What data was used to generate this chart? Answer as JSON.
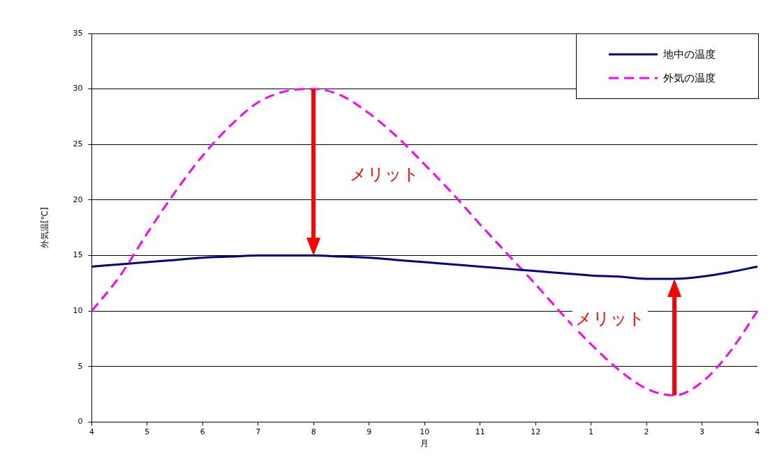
{
  "chart_data": {
    "type": "line",
    "xlabel": "月",
    "ylabel": "外気温[℃]",
    "categories": [
      "4",
      null,
      "5",
      null,
      "6",
      null,
      "7",
      null,
      "8",
      null,
      "9",
      null,
      "10",
      null,
      "11",
      null,
      "12",
      null,
      "1",
      null,
      "2",
      null,
      "3",
      null,
      "4"
    ],
    "ylim": [
      0,
      35
    ],
    "yticks": [
      0,
      5,
      10,
      15,
      20,
      25,
      30,
      35
    ],
    "grid": "y",
    "legend": "top right",
    "marker": "none",
    "series": [
      {
        "name": "地中の温度",
        "color": "#000080",
        "line_style": "solid",
        "values": [
          14,
          14.2,
          14.4,
          14.6,
          14.8,
          14.9,
          15.0,
          15.0,
          15.0,
          14.9,
          14.8,
          14.6,
          14.4,
          14.2,
          14.0,
          13.8,
          13.6,
          13.4,
          13.2,
          13.1,
          12.9,
          12.9,
          13.1,
          13.5,
          14
        ]
      },
      {
        "name": "外気の温度",
        "color": "#ff00ff",
        "line_style": "dashed",
        "values": [
          10,
          13.1,
          17,
          20.7,
          24,
          26.7,
          28.8,
          29.8,
          30,
          29.4,
          27.8,
          25.7,
          23.2,
          20.6,
          17.8,
          15.1,
          12.4,
          9.6,
          7.0,
          4.7,
          3.0,
          2.4,
          3.6,
          6.3,
          10
        ]
      }
    ],
    "annotations": [
      "メリット",
      "メリット"
    ]
  }
}
